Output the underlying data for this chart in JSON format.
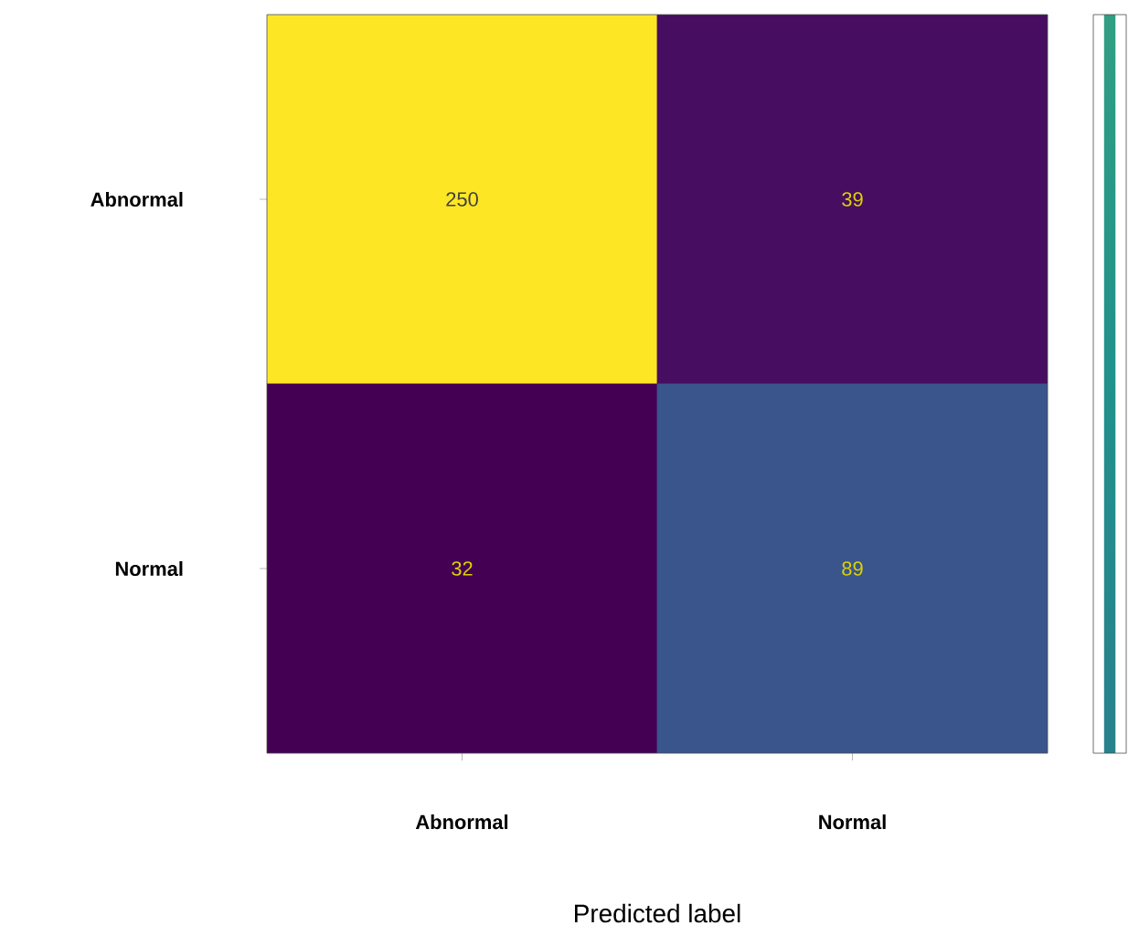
{
  "chart_data": {
    "type": "heatmap",
    "xlabel": "Predicted label",
    "categories": [
      "Abnormal",
      "Normal"
    ],
    "y_categories": [
      "Abnormal",
      "Normal"
    ],
    "cells": [
      [
        250,
        39
      ],
      [
        32,
        89
      ]
    ],
    "data_labels": true
  }
}
